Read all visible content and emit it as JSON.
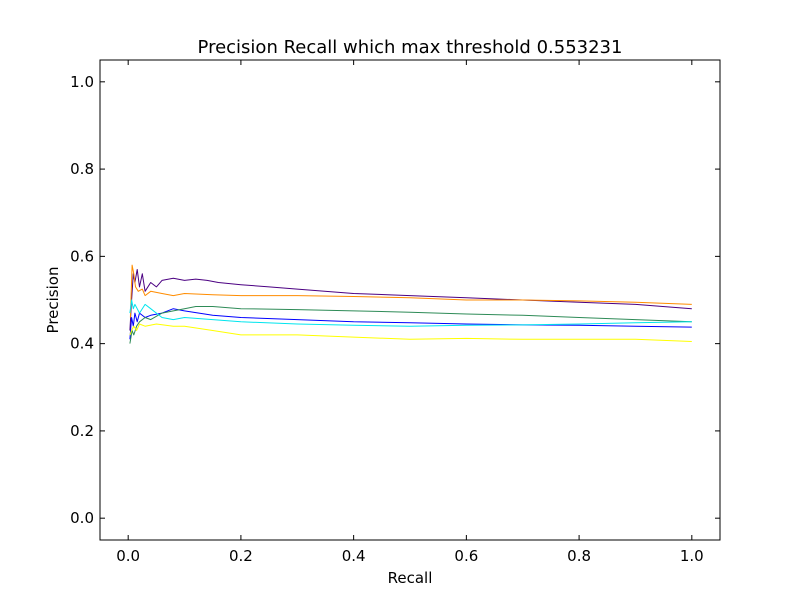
{
  "chart_data": {
    "type": "line",
    "title": "Precision Recall which max threshold 0.553231",
    "xlabel": "Recall",
    "ylabel": "Precision",
    "xlim": [
      -0.05,
      1.05
    ],
    "ylim": [
      -0.05,
      1.05
    ],
    "grid": false,
    "x_ticks": [
      0.0,
      0.2,
      0.4,
      0.6,
      0.8,
      1.0
    ],
    "x_tick_labels": [
      "0.0",
      "0.2",
      "0.4",
      "0.6",
      "0.8",
      "1.0"
    ],
    "y_ticks": [
      0.0,
      0.2,
      0.4,
      0.6,
      0.8,
      1.0
    ],
    "y_tick_labels": [
      "0.0",
      "0.2",
      "0.4",
      "0.6",
      "0.8",
      "1.0"
    ],
    "series": [
      {
        "color": "#4b0082",
        "points": [
          [
            0.003,
            0.43
          ],
          [
            0.006,
            0.5
          ],
          [
            0.009,
            0.56
          ],
          [
            0.012,
            0.54
          ],
          [
            0.016,
            0.57
          ],
          [
            0.02,
            0.53
          ],
          [
            0.025,
            0.56
          ],
          [
            0.03,
            0.52
          ],
          [
            0.04,
            0.54
          ],
          [
            0.05,
            0.53
          ],
          [
            0.06,
            0.545
          ],
          [
            0.08,
            0.55
          ],
          [
            0.1,
            0.545
          ],
          [
            0.12,
            0.548
          ],
          [
            0.14,
            0.545
          ],
          [
            0.16,
            0.54
          ],
          [
            0.2,
            0.535
          ],
          [
            0.25,
            0.53
          ],
          [
            0.3,
            0.525
          ],
          [
            0.4,
            0.515
          ],
          [
            0.5,
            0.51
          ],
          [
            0.6,
            0.505
          ],
          [
            0.7,
            0.5
          ],
          [
            0.8,
            0.495
          ],
          [
            0.9,
            0.49
          ],
          [
            1.0,
            0.48
          ]
        ]
      },
      {
        "color": "#ff8c00",
        "points": [
          [
            0.004,
            0.46
          ],
          [
            0.007,
            0.58
          ],
          [
            0.01,
            0.56
          ],
          [
            0.013,
            0.53
          ],
          [
            0.018,
            0.52
          ],
          [
            0.025,
            0.525
          ],
          [
            0.03,
            0.51
          ],
          [
            0.04,
            0.52
          ],
          [
            0.06,
            0.515
          ],
          [
            0.08,
            0.51
          ],
          [
            0.1,
            0.515
          ],
          [
            0.15,
            0.512
          ],
          [
            0.2,
            0.51
          ],
          [
            0.3,
            0.51
          ],
          [
            0.4,
            0.508
          ],
          [
            0.5,
            0.505
          ],
          [
            0.6,
            0.5
          ],
          [
            0.7,
            0.5
          ],
          [
            0.8,
            0.498
          ],
          [
            0.9,
            0.495
          ],
          [
            1.0,
            0.49
          ]
        ]
      },
      {
        "color": "#0000ff",
        "points": [
          [
            0.003,
            0.41
          ],
          [
            0.006,
            0.46
          ],
          [
            0.009,
            0.44
          ],
          [
            0.012,
            0.47
          ],
          [
            0.016,
            0.45
          ],
          [
            0.02,
            0.47
          ],
          [
            0.03,
            0.46
          ],
          [
            0.04,
            0.465
          ],
          [
            0.06,
            0.47
          ],
          [
            0.08,
            0.48
          ],
          [
            0.1,
            0.475
          ],
          [
            0.15,
            0.465
          ],
          [
            0.2,
            0.46
          ],
          [
            0.3,
            0.455
          ],
          [
            0.4,
            0.45
          ],
          [
            0.5,
            0.448
          ],
          [
            0.6,
            0.445
          ],
          [
            0.7,
            0.443
          ],
          [
            0.8,
            0.442
          ],
          [
            0.9,
            0.44
          ],
          [
            1.0,
            0.438
          ]
        ]
      },
      {
        "color": "#2e8b57",
        "points": [
          [
            0.003,
            0.4
          ],
          [
            0.007,
            0.43
          ],
          [
            0.01,
            0.42
          ],
          [
            0.015,
            0.44
          ],
          [
            0.02,
            0.45
          ],
          [
            0.03,
            0.46
          ],
          [
            0.04,
            0.455
          ],
          [
            0.06,
            0.47
          ],
          [
            0.08,
            0.475
          ],
          [
            0.1,
            0.48
          ],
          [
            0.12,
            0.485
          ],
          [
            0.15,
            0.485
          ],
          [
            0.2,
            0.48
          ],
          [
            0.3,
            0.478
          ],
          [
            0.4,
            0.475
          ],
          [
            0.5,
            0.472
          ],
          [
            0.6,
            0.468
          ],
          [
            0.7,
            0.465
          ],
          [
            0.8,
            0.46
          ],
          [
            0.9,
            0.455
          ],
          [
            1.0,
            0.45
          ]
        ]
      },
      {
        "color": "#00e5ee",
        "points": [
          [
            0.003,
            0.47
          ],
          [
            0.006,
            0.5
          ],
          [
            0.009,
            0.48
          ],
          [
            0.012,
            0.49
          ],
          [
            0.016,
            0.48
          ],
          [
            0.02,
            0.47
          ],
          [
            0.03,
            0.49
          ],
          [
            0.04,
            0.48
          ],
          [
            0.05,
            0.47
          ],
          [
            0.06,
            0.46
          ],
          [
            0.08,
            0.455
          ],
          [
            0.1,
            0.46
          ],
          [
            0.15,
            0.455
          ],
          [
            0.2,
            0.45
          ],
          [
            0.3,
            0.445
          ],
          [
            0.4,
            0.442
          ],
          [
            0.5,
            0.44
          ],
          [
            0.6,
            0.442
          ],
          [
            0.7,
            0.443
          ],
          [
            0.8,
            0.445
          ],
          [
            0.9,
            0.448
          ],
          [
            1.0,
            0.45
          ]
        ]
      },
      {
        "color": "#ffff00",
        "points": [
          [
            0.003,
            0.42
          ],
          [
            0.006,
            0.43
          ],
          [
            0.01,
            0.44
          ],
          [
            0.015,
            0.43
          ],
          [
            0.02,
            0.445
          ],
          [
            0.03,
            0.44
          ],
          [
            0.05,
            0.445
          ],
          [
            0.08,
            0.44
          ],
          [
            0.1,
            0.44
          ],
          [
            0.15,
            0.43
          ],
          [
            0.2,
            0.42
          ],
          [
            0.25,
            0.42
          ],
          [
            0.3,
            0.42
          ],
          [
            0.4,
            0.415
          ],
          [
            0.5,
            0.41
          ],
          [
            0.6,
            0.412
          ],
          [
            0.7,
            0.41
          ],
          [
            0.8,
            0.41
          ],
          [
            0.9,
            0.41
          ],
          [
            1.0,
            0.405
          ]
        ]
      }
    ]
  }
}
